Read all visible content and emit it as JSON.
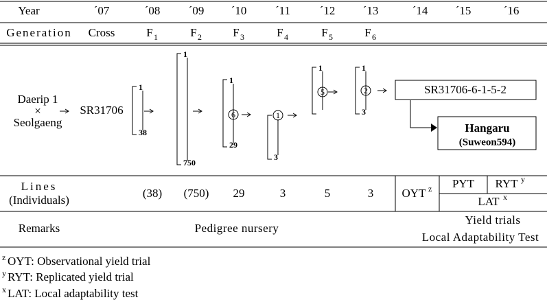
{
  "header": {
    "year_label": "Year",
    "years": [
      "´07",
      "´08",
      "´09",
      "´10",
      "´11",
      "´12",
      "´13",
      "´14",
      "´15",
      "´16"
    ],
    "generation_label": "Generation",
    "generations": [
      {
        "base": "Cross"
      },
      {
        "base": "F",
        "sub": "1"
      },
      {
        "base": "F",
        "sub": "2"
      },
      {
        "base": "F",
        "sub": "3"
      },
      {
        "base": "F",
        "sub": "4"
      },
      {
        "base": "F",
        "sub": "5"
      },
      {
        "base": "F",
        "sub": "6"
      }
    ]
  },
  "diagram": {
    "parents": [
      "Daerip 1",
      "×",
      "Seolgaeng"
    ],
    "cross": "SR31706",
    "brackets": [
      {
        "top": "1",
        "bottom": "38"
      },
      {
        "top": "1",
        "bottom": "750"
      },
      {
        "top": "1",
        "selected": "6",
        "bottom": "29"
      },
      {
        "selected": "1",
        "bottom": "3"
      },
      {
        "top": "1",
        "selected": "5"
      },
      {
        "top": "1",
        "selected": "2",
        "bottom": "3"
      }
    ],
    "line_name": "SR31706-6-1-5-2",
    "variety": "Hangaru",
    "variety_alias": "(Suweon594)"
  },
  "lines_row": {
    "label": [
      "Lines",
      "(Individuals)"
    ],
    "values": [
      "(38)",
      "(750)",
      "29",
      "3",
      "5",
      "3"
    ],
    "trials": [
      {
        "name": "OYT",
        "sup": "z"
      },
      {
        "name": "PYT"
      },
      {
        "name": "RYT",
        "sup": "y"
      },
      {
        "name": "LAT",
        "sup": "x"
      }
    ]
  },
  "remarks_row": {
    "label": "Remarks",
    "nursery": "Pedigree nursery",
    "yield": [
      "Yield trials",
      "Local Adaptability Test"
    ]
  },
  "footnotes": [
    {
      "sup": "z",
      "text": "OYT: Observational yield trial"
    },
    {
      "sup": "y",
      "text": "RYT: Replicated yield trial"
    },
    {
      "sup": "x",
      "text": "LAT: Local adaptability test"
    }
  ]
}
